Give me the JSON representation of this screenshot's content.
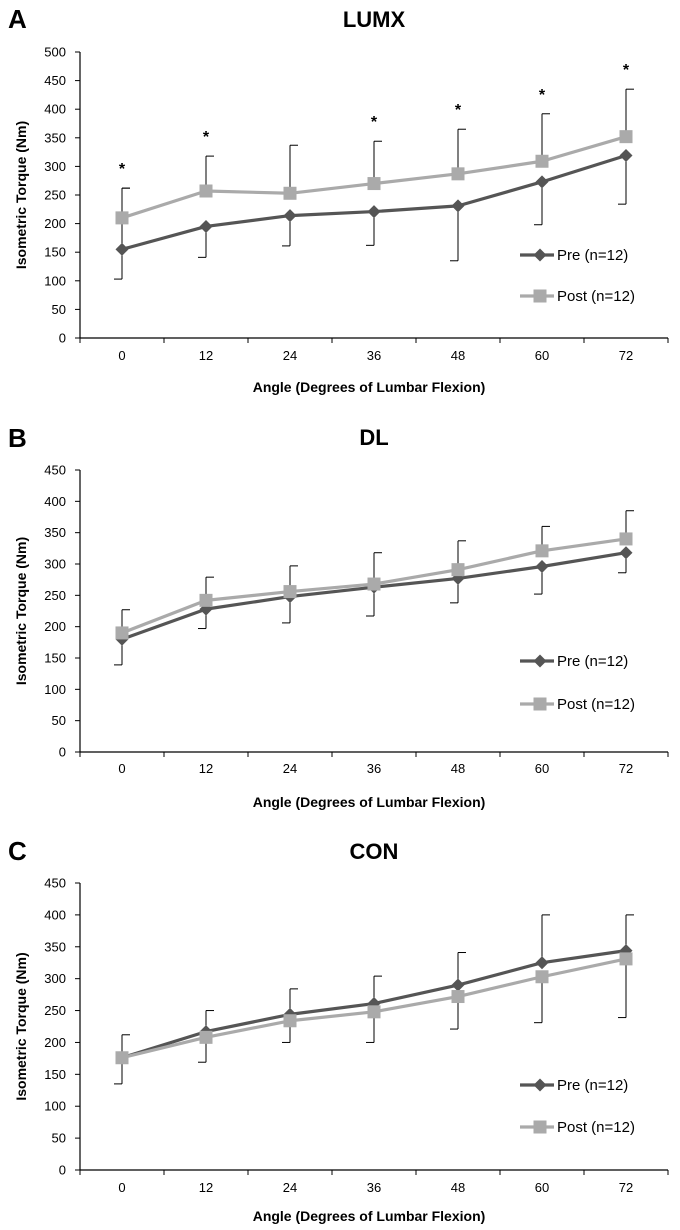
{
  "chart_data": [
    {
      "type": "line",
      "panel_label": "A",
      "title": "LUMX",
      "xlabel": "Angle (Degrees of Lumbar Flexion)",
      "ylabel": "Isometric Torque (Nm)",
      "categories": [
        "0",
        "12",
        "24",
        "36",
        "48",
        "60",
        "72"
      ],
      "ylim": [
        0,
        500
      ],
      "yticks": [
        "0",
        "50",
        "100",
        "150",
        "200",
        "250",
        "300",
        "350",
        "400",
        "450",
        "500"
      ],
      "legend_position": "right",
      "significance_markers": [
        "*",
        "*",
        "",
        "*",
        "*",
        "*",
        "*"
      ],
      "series": [
        {
          "name": "Pre (n=12)",
          "color": "#555555",
          "marker": "diamond",
          "values": [
            155,
            195,
            214,
            221,
            231,
            273,
            319
          ],
          "error_low": [
            103,
            141,
            161,
            162,
            135,
            198,
            234
          ],
          "error_high": [
            262,
            0,
            0,
            0,
            0,
            0,
            0
          ]
        },
        {
          "name": "Post (n=12)",
          "color": "#aaaaaa",
          "marker": "square",
          "values": [
            210,
            257,
            253,
            270,
            287,
            309,
            352
          ],
          "error_low": [
            0,
            0,
            0,
            0,
            0,
            0,
            0
          ],
          "error_high": [
            262,
            318,
            337,
            344,
            365,
            392,
            435
          ]
        }
      ]
    },
    {
      "type": "line",
      "panel_label": "B",
      "title": "DL",
      "xlabel": "Angle (Degrees of Lumbar Flexion)",
      "ylabel": "Isometric Torque (Nm)",
      "categories": [
        "0",
        "12",
        "24",
        "36",
        "48",
        "60",
        "72"
      ],
      "ylim": [
        0,
        450
      ],
      "yticks": [
        "0",
        "50",
        "100",
        "150",
        "200",
        "250",
        "300",
        "350",
        "400",
        "450"
      ],
      "legend_position": "right",
      "significance_markers": [
        "",
        "",
        "",
        "",
        "",
        "",
        ""
      ],
      "series": [
        {
          "name": "Pre (n=12)",
          "color": "#555555",
          "marker": "diamond",
          "values": [
            180,
            228,
            248,
            263,
            277,
            296,
            318
          ],
          "error_low": [
            139,
            197,
            206,
            217,
            238,
            252,
            286
          ],
          "error_high": [
            0,
            0,
            0,
            0,
            0,
            0,
            0
          ]
        },
        {
          "name": "Post (n=12)",
          "color": "#aaaaaa",
          "marker": "square",
          "values": [
            190,
            242,
            256,
            268,
            291,
            321,
            340
          ],
          "error_low": [
            0,
            0,
            0,
            0,
            0,
            0,
            0
          ],
          "error_high": [
            227,
            279,
            297,
            318,
            337,
            360,
            385
          ]
        }
      ]
    },
    {
      "type": "line",
      "panel_label": "C",
      "title": "CON",
      "xlabel": "Angle (Degrees of Lumbar Flexion)",
      "ylabel": "Isometric Torque (Nm)",
      "categories": [
        "0",
        "12",
        "24",
        "36",
        "48",
        "60",
        "72"
      ],
      "ylim": [
        0,
        450
      ],
      "yticks": [
        "0",
        "50",
        "100",
        "150",
        "200",
        "250",
        "300",
        "350",
        "400",
        "450"
      ],
      "legend_position": "right",
      "significance_markers": [
        "",
        "",
        "",
        "",
        "",
        "",
        ""
      ],
      "series": [
        {
          "name": "Pre (n=12)",
          "color": "#555555",
          "marker": "diamond",
          "values": [
            176,
            217,
            244,
            261,
            290,
            325,
            344
          ],
          "error_low": [
            0,
            0,
            0,
            0,
            0,
            0,
            0
          ],
          "error_high": [
            212,
            250,
            284,
            304,
            341,
            400,
            400
          ]
        },
        {
          "name": "Post (n=12)",
          "color": "#aaaaaa",
          "marker": "square",
          "values": [
            176,
            208,
            234,
            248,
            272,
            303,
            331
          ],
          "error_low": [
            135,
            169,
            200,
            200,
            221,
            231,
            239
          ],
          "error_high": [
            0,
            0,
            0,
            0,
            0,
            0,
            0
          ]
        }
      ]
    }
  ]
}
